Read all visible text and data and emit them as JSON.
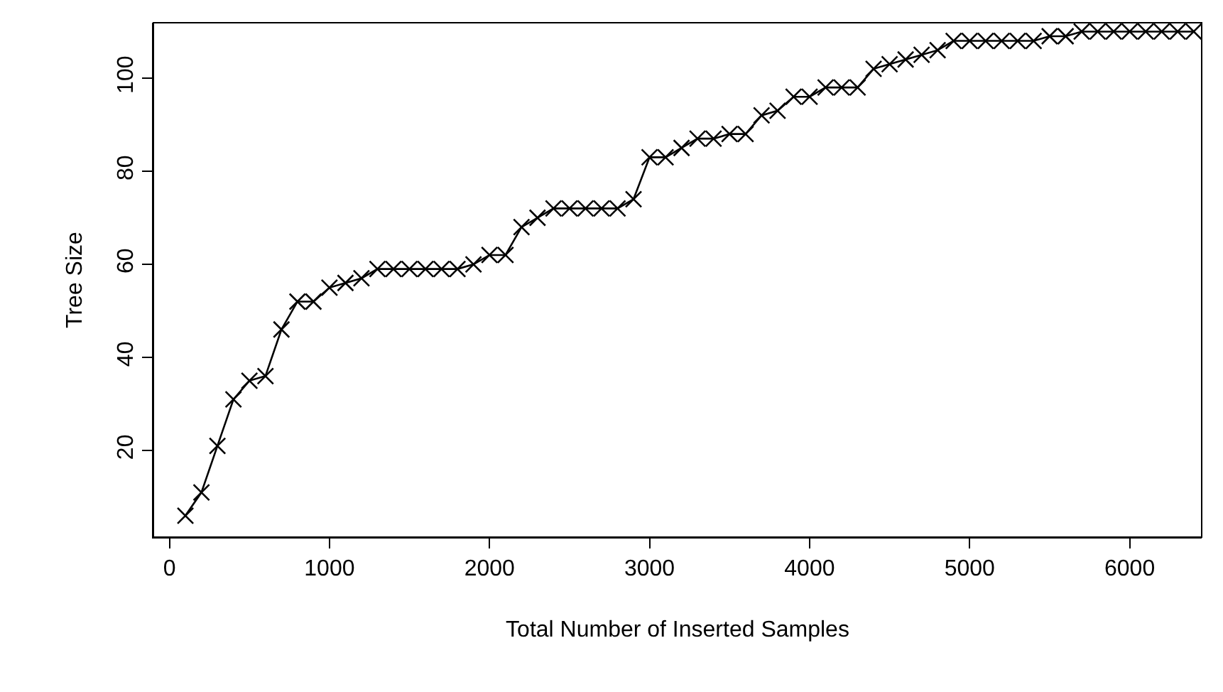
{
  "chart_data": {
    "type": "line",
    "xlabel": "Total Number of Inserted Samples",
    "ylabel": "Tree Size",
    "x": [
      100,
      200,
      300,
      400,
      500,
      600,
      700,
      800,
      900,
      1000,
      1100,
      1200,
      1300,
      1400,
      1500,
      1600,
      1700,
      1800,
      1900,
      2000,
      2100,
      2200,
      2300,
      2400,
      2500,
      2600,
      2700,
      2800,
      2900,
      3000,
      3100,
      3200,
      3300,
      3400,
      3500,
      3600,
      3700,
      3800,
      3900,
      4000,
      4100,
      4200,
      4300,
      4400,
      4500,
      4600,
      4700,
      4800,
      4900,
      5000,
      5100,
      5200,
      5300,
      5400,
      5500,
      5600,
      5700,
      5800,
      5900,
      6000,
      6100,
      6200,
      6300,
      6400
    ],
    "series": [
      {
        "color": "#000000",
        "values": [
          6,
          11,
          21,
          31,
          35,
          36,
          46,
          52,
          52,
          55,
          56,
          57,
          59,
          59,
          59,
          59,
          59,
          59,
          60,
          62,
          62,
          68,
          70,
          72,
          72,
          72,
          72,
          72,
          74,
          83,
          83,
          85,
          87,
          87,
          88,
          88,
          92,
          93,
          96,
          96,
          98,
          98,
          98,
          102,
          103,
          104,
          105,
          106,
          108,
          108,
          108,
          108,
          108,
          108,
          109,
          109,
          110,
          110,
          110,
          110,
          110,
          110,
          110,
          110
        ]
      }
    ],
    "xlim": [
      -100,
      6450
    ],
    "ylim": [
      1.4,
      111.9
    ],
    "xticks": [
      0,
      1000,
      2000,
      3000,
      4000,
      5000,
      6000
    ],
    "yticks": [
      20,
      40,
      60,
      80,
      100
    ],
    "marker": "cross",
    "line_style": "solid"
  }
}
